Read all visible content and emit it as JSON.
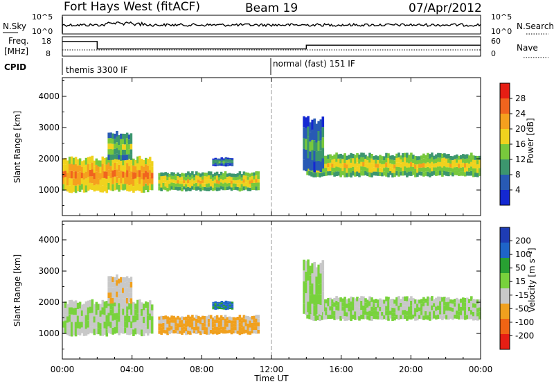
{
  "header": {
    "station": "Fort Hays West (fitACF)",
    "beam": "Beam 19",
    "date": "07/Apr/2012"
  },
  "noise_panel": {
    "left_label": "N.Sky",
    "right_label": "N.Search",
    "left_ticks": [
      "10^5",
      "10^0"
    ],
    "right_ticks": [
      "10^5",
      "10^0"
    ]
  },
  "freq_panel": {
    "left_label_1": "Freq.",
    "left_label_2": "[MHz]",
    "right_label": "Nave",
    "left_ticks": [
      "18",
      "8"
    ],
    "right_ticks": [
      "60",
      "0"
    ]
  },
  "cpid_panel": {
    "label": "CPID",
    "modes": [
      {
        "name": "themis 3300 IF",
        "start_hour": 0
      },
      {
        "name": "normal (fast) 151 IF",
        "start_hour": 12
      }
    ]
  },
  "power_panel": {
    "ylabel": "Slant Range [km]",
    "yticks": [
      "1000",
      "2000",
      "3000",
      "4000"
    ],
    "colorbar_label": "Power [dB]",
    "colorbar_ticks": [
      "28",
      "24",
      "20",
      "16",
      "12",
      "8",
      "4"
    ]
  },
  "velocity_panel": {
    "ylabel": "Slant Range [km]",
    "yticks": [
      "1000",
      "2000",
      "3000",
      "4000"
    ],
    "colorbar_label": "Velocity [m s⁻¹]",
    "colorbar_ticks": [
      "200",
      "100",
      "50",
      "15",
      "-15",
      "-50",
      "-100",
      "-200"
    ]
  },
  "xaxis": {
    "label": "Time UT",
    "ticks": [
      "00:00",
      "04:00",
      "08:00",
      "12:00",
      "16:00",
      "20:00",
      "00:00"
    ]
  },
  "chart_data": {
    "type": "heatmap",
    "title": "Fort Hays West (fitACF)",
    "subtitle": "Beam 19",
    "date": "07/Apr/2012",
    "x_range_hours": [
      0,
      24
    ],
    "y_range_km": [
      180,
      4600
    ],
    "power_colors": [
      "#e61e14",
      "#f0641e",
      "#f5a01e",
      "#f0d21e",
      "#78c83c",
      "#3c966e",
      "#285ab4",
      "#1428d2"
    ],
    "power_range_db": [
      0,
      32
    ],
    "velocity_colors": [
      "#1e3cb4",
      "#1e64c8",
      "#28a032",
      "#78d23c",
      "#c8c8c8",
      "#f0a01e",
      "#f06414",
      "#e61e14"
    ],
    "velocity_range_ms": [
      -250,
      250
    ],
    "freq_mhz": [
      {
        "start": 0,
        "end": 2,
        "value": 17
      },
      {
        "start": 2,
        "end": 14,
        "value": 11
      },
      {
        "start": 14,
        "end": 24,
        "value": 14
      }
    ],
    "echo_regions": [
      {
        "name": "ground-scatter-evening",
        "t0": 0.0,
        "t1": 5.2,
        "r0": 900,
        "r1": 2100,
        "power": 20,
        "velocity": 0
      },
      {
        "name": "early-clump",
        "t0": 2.6,
        "t1": 4.0,
        "r0": 1900,
        "r1": 2900,
        "power": 10,
        "velocity": -60
      },
      {
        "name": "band-06-11",
        "t0": 5.5,
        "t1": 11.3,
        "r0": 950,
        "r1": 1600,
        "power": 14,
        "velocity": -80
      },
      {
        "name": "patch-09",
        "t0": 8.6,
        "t1": 9.8,
        "r0": 1750,
        "r1": 2050,
        "power": 6,
        "velocity": 150
      },
      {
        "name": "after-midnight-gs",
        "t0": 14.0,
        "t1": 24.0,
        "r0": 1400,
        "r1": 2200,
        "power": 14,
        "velocity": 0
      },
      {
        "name": "rising-streak",
        "t0": 13.8,
        "t1": 15.0,
        "r0": 1500,
        "r1": 3400,
        "power": 6,
        "velocity": 0
      }
    ],
    "xlabel": "Time UT",
    "ylabel": "Slant Range [km]"
  }
}
